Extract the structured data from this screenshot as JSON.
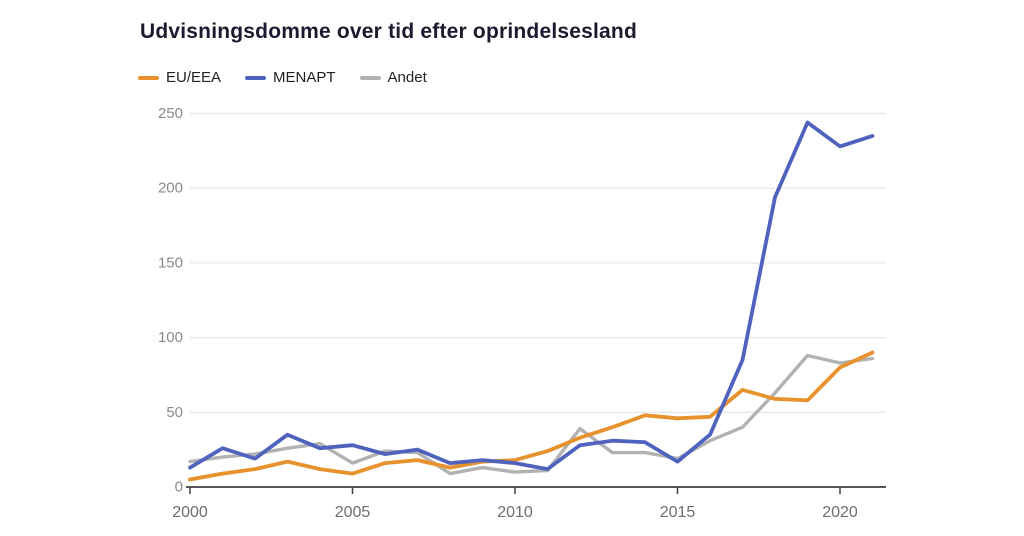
{
  "title": "Udvisningsdomme over tid efter oprindelsesland",
  "legend": [
    {
      "label": "EU/EEA",
      "color": "#E8922E"
    },
    {
      "label": "MENAPT",
      "color": "#4F63BE"
    },
    {
      "label": "Andet",
      "color": "#B2B2B2"
    }
  ],
  "colors": {
    "grid": "#e8e8e8",
    "axis": "#3f3f3f",
    "y_tick_label": "#8a8a8a",
    "x_tick_label": "#6e6e6e"
  },
  "chart_data": {
    "type": "line",
    "title": "Udvisningsdomme over tid efter oprindelsesland",
    "xlabel": "",
    "ylabel": "",
    "x": [
      2000,
      2001,
      2002,
      2003,
      2004,
      2005,
      2006,
      2007,
      2008,
      2009,
      2010,
      2011,
      2012,
      2013,
      2014,
      2015,
      2016,
      2017,
      2018,
      2019,
      2020,
      2021
    ],
    "series": [
      {
        "name": "EU/EEA",
        "color": "#E8922E",
        "values": [
          5,
          9,
          12,
          17,
          12,
          9,
          16,
          18,
          13,
          17,
          18,
          24,
          33,
          40,
          48,
          46,
          47,
          65,
          59,
          58,
          80,
          90
        ]
      },
      {
        "name": "MENAPT",
        "color": "#4F63BE",
        "values": [
          13,
          26,
          19,
          35,
          26,
          28,
          22,
          25,
          16,
          18,
          16,
          12,
          28,
          31,
          30,
          17,
          35,
          85,
          194,
          244,
          228,
          235
        ]
      },
      {
        "name": "Andet",
        "color": "#B2B2B2",
        "values": [
          17,
          20,
          22,
          26,
          29,
          16,
          24,
          23,
          9,
          13,
          10,
          11,
          39,
          23,
          23,
          19,
          31,
          40,
          63,
          88,
          83,
          86
        ]
      }
    ],
    "draw_order": [
      "Andet",
      "EU/EEA",
      "MENAPT"
    ],
    "x_ticks": [
      2000,
      2005,
      2010,
      2015,
      2020
    ],
    "y_ticks": [
      0,
      50,
      100,
      150,
      200,
      250
    ],
    "xlim": [
      2000,
      2021
    ],
    "ylim": [
      0,
      250
    ],
    "grid": "horizontal-only",
    "legend_position": "top-left"
  }
}
